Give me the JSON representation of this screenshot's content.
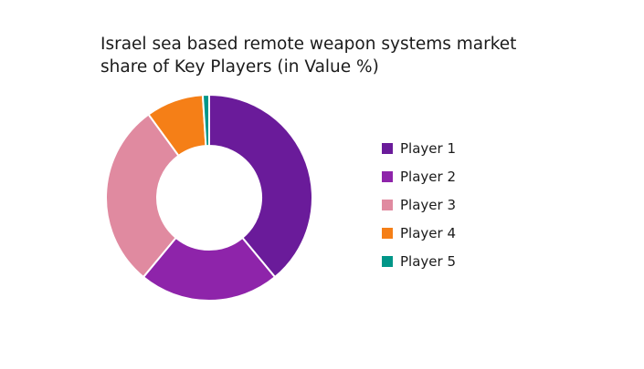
{
  "chart_data": {
    "type": "pie",
    "title_lines": [
      "Israel sea based remote weapon systems market",
      "share of Key Players (in Value %)"
    ],
    "donut": true,
    "legend_position": "right",
    "series": [
      {
        "name": "Player 1",
        "value": 39,
        "color": "#6A1B9A"
      },
      {
        "name": "Player 2",
        "value": 22,
        "color": "#8E24AA"
      },
      {
        "name": "Player 3",
        "value": 29,
        "color": "#E08AA0"
      },
      {
        "name": "Player 4",
        "value": 9,
        "color": "#F57F17"
      },
      {
        "name": "Player 5",
        "value": 1,
        "color": "#009688"
      }
    ]
  }
}
